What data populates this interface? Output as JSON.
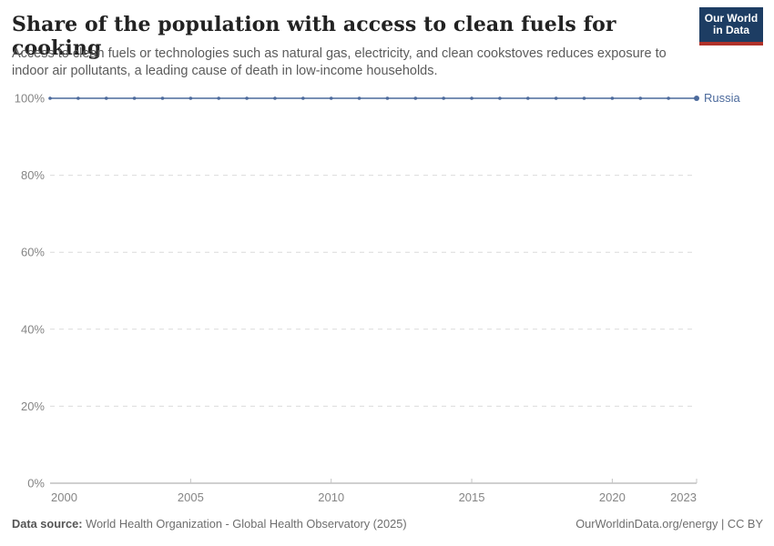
{
  "header": {
    "title": "Share of the population with access to clean fuels for cooking",
    "subtitle": "Access to clean fuels or technologies such as natural gas, electricity, and clean cookstoves reduces exposure to indoor air pollutants, a leading cause of death in low-income households.",
    "logo": {
      "line1": "Our World",
      "line2": "in Data",
      "bg_color": "#1d3d63",
      "stripe_color": "#b0322a",
      "text_color": "#ffffff"
    }
  },
  "footer": {
    "datasource_label": "Data source:",
    "datasource_value": "World Health Organization - Global Health Observatory (2025)",
    "rights": "OurWorldinData.org/energy | CC BY"
  },
  "chart_data": {
    "type": "line",
    "title": "Share of the population with access to clean fuels for cooking",
    "xlabel": "",
    "ylabel": "",
    "xlim": [
      2000,
      2023
    ],
    "ylim": [
      0,
      100
    ],
    "grid": "horizontal-dashed",
    "legend_position": "end-of-line-label",
    "x": [
      2000,
      2001,
      2002,
      2003,
      2004,
      2005,
      2006,
      2007,
      2008,
      2009,
      2010,
      2011,
      2012,
      2013,
      2014,
      2015,
      2016,
      2017,
      2018,
      2019,
      2020,
      2021,
      2022,
      2023
    ],
    "series": [
      {
        "name": "Russia",
        "color": "#4c6a9c",
        "values": [
          100,
          100,
          100,
          100,
          100,
          100,
          100,
          100,
          100,
          100,
          100,
          100,
          100,
          100,
          100,
          100,
          100,
          100,
          100,
          100,
          100,
          100,
          100,
          100
        ]
      }
    ],
    "yticks": [
      {
        "value": 0,
        "label": "0%"
      },
      {
        "value": 20,
        "label": "20%"
      },
      {
        "value": 40,
        "label": "40%"
      },
      {
        "value": 60,
        "label": "60%"
      },
      {
        "value": 80,
        "label": "80%"
      },
      {
        "value": 100,
        "label": "100%"
      }
    ],
    "xticks": [
      {
        "value": 2000,
        "label": "2000"
      },
      {
        "value": 2005,
        "label": "2005"
      },
      {
        "value": 2010,
        "label": "2010"
      },
      {
        "value": 2015,
        "label": "2015"
      },
      {
        "value": 2020,
        "label": "2020"
      },
      {
        "value": 2023,
        "label": "2023"
      }
    ],
    "colors": {
      "grid": "#dcdcdc",
      "axis": "#a1a1a1",
      "tick": "#c4c4c4",
      "tick_label": "#858585"
    }
  }
}
